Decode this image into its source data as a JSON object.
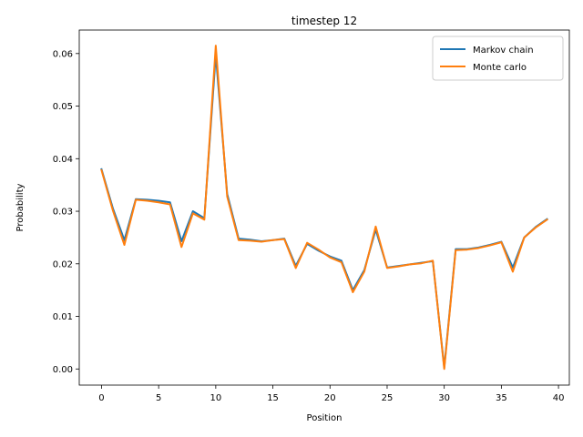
{
  "chart_data": {
    "type": "line",
    "title": "timestep 12",
    "xlabel": "Position",
    "ylabel": "Probability",
    "xlim": [
      -1.95,
      40.95
    ],
    "ylim": [
      -0.00307,
      0.06447
    ],
    "xticks": [
      0,
      5,
      10,
      15,
      20,
      25,
      30,
      35,
      40
    ],
    "xtick_labels": [
      "0",
      "5",
      "10",
      "15",
      "20",
      "25",
      "30",
      "35",
      "40"
    ],
    "yticks": [
      0.0,
      0.01,
      0.02,
      0.03,
      0.04,
      0.05,
      0.06
    ],
    "ytick_labels": [
      "0.00",
      "0.01",
      "0.02",
      "0.03",
      "0.04",
      "0.05",
      "0.06"
    ],
    "grid": false,
    "legend_position": "top-right",
    "x": [
      0,
      1,
      2,
      3,
      4,
      5,
      6,
      7,
      8,
      9,
      10,
      11,
      12,
      13,
      14,
      15,
      16,
      17,
      18,
      19,
      20,
      21,
      22,
      23,
      24,
      25,
      26,
      27,
      28,
      29,
      30,
      31,
      32,
      33,
      34,
      35,
      36,
      37,
      38,
      39
    ],
    "series": [
      {
        "name": "Markov chain",
        "color": "#1f77b4",
        "values": [
          0.038,
          0.0305,
          0.0245,
          0.0323,
          0.0322,
          0.032,
          0.0317,
          0.0243,
          0.03,
          0.0287,
          0.0598,
          0.0333,
          0.0248,
          0.0246,
          0.0243,
          0.0245,
          0.0248,
          0.0196,
          0.0238,
          0.0225,
          0.0214,
          0.0206,
          0.015,
          0.0188,
          0.0265,
          0.0193,
          0.0196,
          0.0199,
          0.0202,
          0.0205,
          0.0003,
          0.0228,
          0.0228,
          0.0231,
          0.0236,
          0.0242,
          0.0193,
          0.025,
          0.027,
          0.0285
        ]
      },
      {
        "name": "Monte carlo",
        "color": "#ff7f0e",
        "values": [
          0.0378,
          0.0301,
          0.0236,
          0.0322,
          0.032,
          0.0317,
          0.0313,
          0.0232,
          0.0296,
          0.0284,
          0.0615,
          0.0328,
          0.0245,
          0.0244,
          0.0242,
          0.0245,
          0.0247,
          0.0192,
          0.024,
          0.0227,
          0.0212,
          0.0203,
          0.0146,
          0.0185,
          0.0271,
          0.0192,
          0.0195,
          0.0199,
          0.0201,
          0.0206,
          0.0,
          0.0226,
          0.0227,
          0.023,
          0.0235,
          0.0241,
          0.0185,
          0.025,
          0.0269,
          0.0284
        ]
      }
    ]
  }
}
